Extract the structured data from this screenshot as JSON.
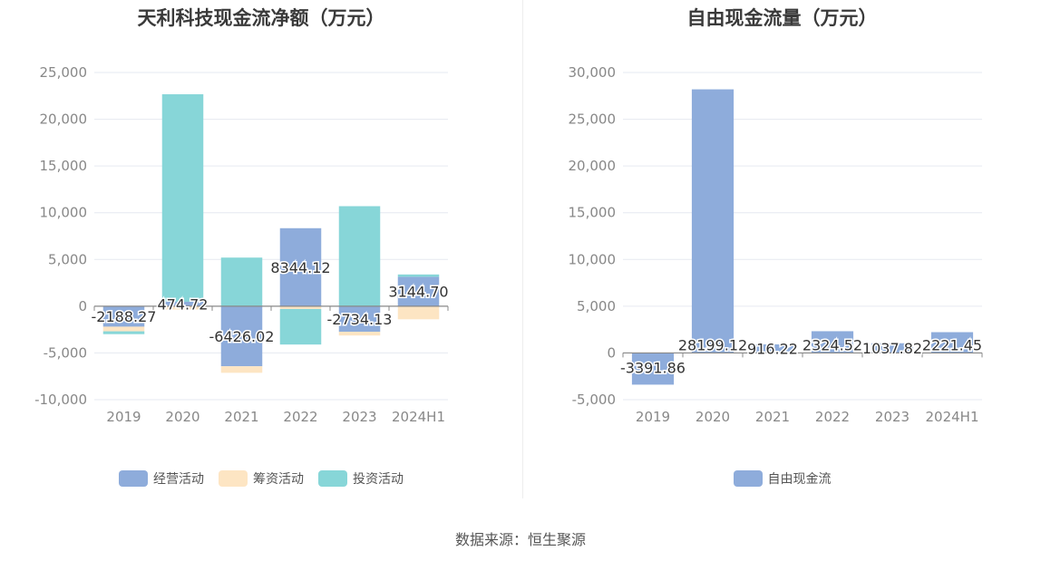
{
  "source_text": "数据来源：恒生聚源",
  "chart_data": [
    {
      "type": "bar",
      "stacked": true,
      "title": "天利科技现金流净额（万元）",
      "categories": [
        "2019",
        "2020",
        "2021",
        "2022",
        "2023",
        "2024H1"
      ],
      "ylim": [
        -10000,
        25000
      ],
      "yticks": [
        -10000,
        -5000,
        0,
        5000,
        10000,
        15000,
        20000,
        25000
      ],
      "ytick_labels": [
        "-10,000",
        "-5,000",
        "0",
        "5,000",
        "10,000",
        "15,000",
        "20,000",
        "25,000"
      ],
      "grid": true,
      "legend_position": "bottom",
      "series": [
        {
          "name": "经营活动",
          "color": "#8eacdb",
          "values": [
            -2188.27,
            474.72,
            -6426.02,
            8344.12,
            -2734.13,
            3144.7
          ]
        },
        {
          "name": "筹资活动",
          "color": "#fde5c3",
          "values": [
            -500,
            -350,
            -700,
            -300,
            -400,
            -1400
          ]
        },
        {
          "name": "投资活动",
          "color": "#87d6d8",
          "values": [
            -300,
            22200,
            5200,
            -3800,
            10700,
            250
          ]
        }
      ],
      "data_labels": [
        "-2188.27",
        "474.72",
        "-6426.02",
        "8344.12",
        "-2734.13",
        "3144.70"
      ]
    },
    {
      "type": "bar",
      "title": "自由现金流量（万元）",
      "categories": [
        "2019",
        "2020",
        "2021",
        "2022",
        "2023",
        "2024H1"
      ],
      "ylim": [
        -5000,
        30000
      ],
      "yticks": [
        -5000,
        0,
        5000,
        10000,
        15000,
        20000,
        25000,
        30000
      ],
      "ytick_labels": [
        "-5,000",
        "0",
        "5,000",
        "10,000",
        "15,000",
        "20,000",
        "25,000",
        "30,000"
      ],
      "grid": true,
      "legend_position": "bottom",
      "series": [
        {
          "name": "自由现金流",
          "color": "#8eacdb",
          "values": [
            -3391.86,
            28199.12,
            916.22,
            2324.52,
            1037.82,
            2221.45
          ]
        }
      ],
      "data_labels": [
        "-3391.86",
        "28199.12",
        "916.22",
        "2324.52",
        "1037.82",
        "2221.45"
      ]
    }
  ]
}
